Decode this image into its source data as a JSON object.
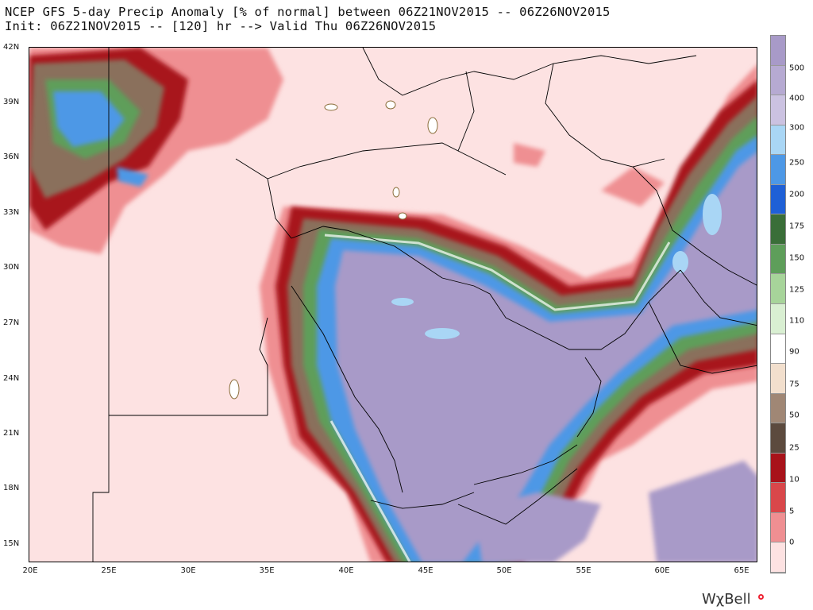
{
  "title_line1": "NCEP GFS 5-day Precip Anomaly [% of normal] between 06Z21NOV2015 -- 06Z26NOV2015",
  "title_line2": "Init: 06Z21NOV2015 -- [120] hr --> Valid Thu 06Z26NOV2015",
  "lat_labels": [
    "42N",
    "39N",
    "36N",
    "33N",
    "30N",
    "27N",
    "24N",
    "21N",
    "18N",
    "15N"
  ],
  "lon_labels": [
    "20E",
    "25E",
    "30E",
    "35E",
    "40E",
    "45E",
    "50E",
    "55E",
    "60E",
    "65E"
  ],
  "colorbar": {
    "labels": [
      "500",
      "400",
      "300",
      "250",
      "200",
      "175",
      "150",
      "125",
      "110",
      "90",
      "75",
      "50",
      "25",
      "10",
      "5",
      "0"
    ],
    "colors": [
      "#a89ac8",
      "#b6aad2",
      "#cbc2e1",
      "#a9d6f5",
      "#4d98e6",
      "#1f60d6",
      "#3a6e38",
      "#5e9e5a",
      "#a7d49a",
      "#d9efd2",
      "#ffffff",
      "#f2dfcd",
      "#a08775",
      "#5c4a3e",
      "#a8131a",
      "#d9474a",
      "#ef8f92",
      "#fde2e2"
    ]
  },
  "brand": "WχBell",
  "colors": {
    "background": "#fde2e2",
    "dry_red": "#a8131a",
    "wet_purple": "#a89ac8"
  }
}
